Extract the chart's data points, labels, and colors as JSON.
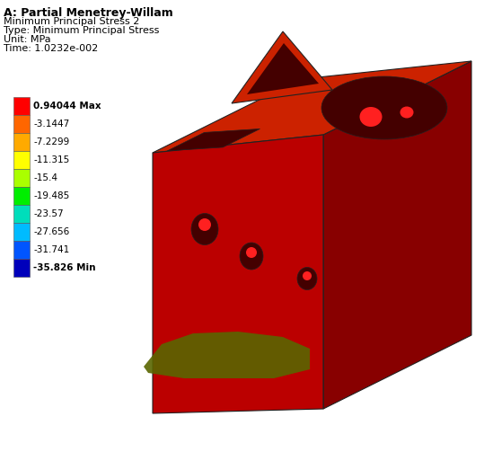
{
  "title_line1": "A: Partial Menetrey-Willam",
  "title_line2": "Minimum Principal Stress 2",
  "title_line3": "Type: Minimum Principal Stress",
  "title_line4": "Unit: MPa",
  "title_line5": "Time: 1.0232e-002",
  "colorbar_values": [
    "0.94044 Max",
    "-3.1447",
    "-7.2299",
    "-11.315",
    "-15.4",
    "-19.485",
    "-23.57",
    "-27.656",
    "-31.741",
    "-35.826 Min"
  ],
  "colorbar_colors": [
    "#ff0000",
    "#ff6600",
    "#ffaa00",
    "#ffff00",
    "#aaff00",
    "#00ee00",
    "#00ddbb",
    "#00bbff",
    "#0055ff",
    "#0000bb"
  ],
  "background_color": "#ffffff",
  "body_front_color": "#bb0000",
  "body_right_color": "#880000",
  "body_top_color": "#cc2200",
  "hole_dark": "#440000",
  "hole_medium": "#660000",
  "bright_red": "#ff2020",
  "green_patch_color": "#5a6600",
  "edge_color": "#222222"
}
